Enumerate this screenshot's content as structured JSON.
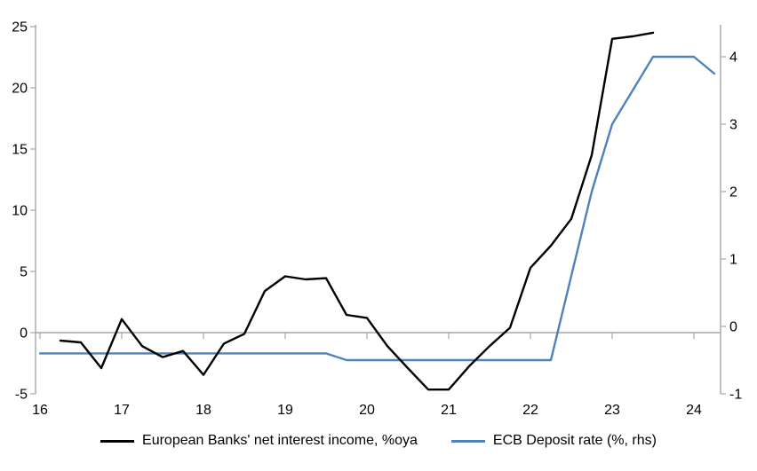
{
  "chart_data": {
    "type": "line",
    "title": "",
    "x_ticks": [
      "16",
      "17",
      "18",
      "19",
      "20",
      "21",
      "22",
      "23",
      "24"
    ],
    "x_tick_years": [
      16,
      17,
      18,
      19,
      20,
      21,
      22,
      23,
      24
    ],
    "left_axis": {
      "ticks": [
        -5,
        0,
        5,
        10,
        15,
        20,
        25
      ],
      "min": -5,
      "max": 25
    },
    "right_axis": {
      "ticks": [
        -1,
        0,
        1,
        2,
        3,
        4
      ],
      "min": -1,
      "max": 4.47
    },
    "grid": "zero-line-only",
    "legend_position": "bottom",
    "axis_color": "#a6a6a6",
    "text_color": "#000000",
    "series": [
      {
        "name": "European Banks' net interest income, %oya",
        "axis": "left",
        "color": "#000000",
        "x": [
          16.25,
          16.5,
          16.75,
          17.0,
          17.25,
          17.5,
          17.75,
          18.0,
          18.25,
          18.5,
          18.75,
          19.0,
          19.25,
          19.5,
          19.75,
          20.0,
          20.25,
          20.5,
          20.75,
          21.0,
          21.25,
          21.5,
          21.75,
          22.0,
          22.25,
          22.5,
          22.75,
          23.0,
          23.25,
          23.5
        ],
        "values": [
          -0.65,
          -0.8,
          -2.9,
          1.1,
          -1.1,
          -2.0,
          -1.5,
          -3.45,
          -0.9,
          -0.1,
          3.4,
          4.6,
          4.35,
          4.45,
          1.45,
          1.2,
          -1.1,
          -2.9,
          -4.65,
          -4.65,
          -2.75,
          -1.1,
          0.4,
          5.3,
          7.1,
          9.3,
          14.5,
          24.0,
          24.2,
          24.5
        ]
      },
      {
        "name": "ECB Deposit rate (%, rhs)",
        "axis": "right",
        "color": "#4f81bd",
        "x": [
          16.0,
          16.25,
          16.5,
          16.75,
          17.0,
          17.25,
          17.5,
          17.75,
          18.0,
          18.25,
          18.5,
          18.75,
          19.0,
          19.25,
          19.5,
          19.75,
          20.0,
          20.25,
          20.5,
          20.75,
          21.0,
          21.25,
          21.5,
          21.75,
          22.0,
          22.25,
          22.5,
          22.75,
          23.0,
          23.25,
          23.5,
          23.75,
          24.0,
          24.25
        ],
        "values": [
          -0.4,
          -0.4,
          -0.4,
          -0.4,
          -0.4,
          -0.4,
          -0.4,
          -0.4,
          -0.4,
          -0.4,
          -0.4,
          -0.4,
          -0.4,
          -0.4,
          -0.4,
          -0.5,
          -0.5,
          -0.5,
          -0.5,
          -0.5,
          -0.5,
          -0.5,
          -0.5,
          -0.5,
          -0.5,
          -0.5,
          0.75,
          2.0,
          3.0,
          3.5,
          4.0,
          4.0,
          4.0,
          3.75
        ]
      }
    ]
  }
}
